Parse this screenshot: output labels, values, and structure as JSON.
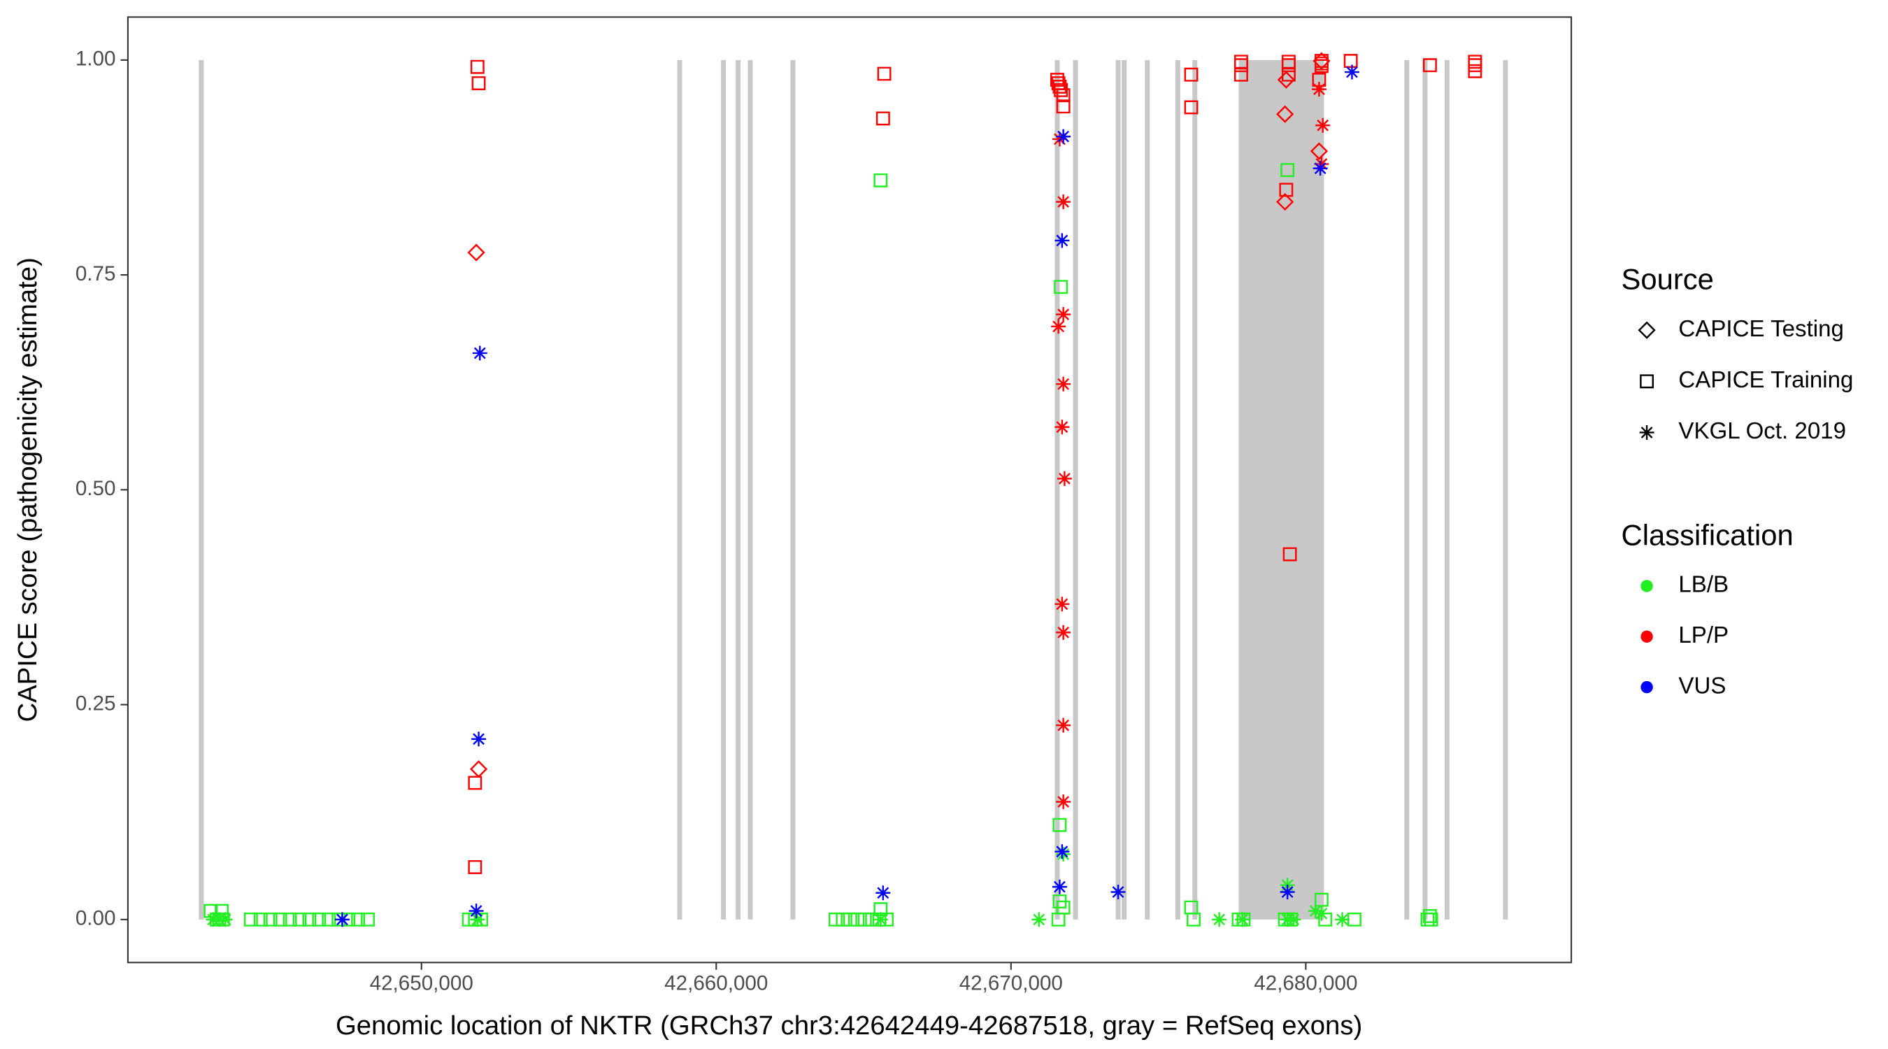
{
  "chart_data": {
    "type": "scatter",
    "x_label": "Genomic location of NKTR (GRCh37 chr3:42642449-42687518, gray = RefSeq exons)",
    "y_label": "CAPICE score (pathogenicity estimate)",
    "xlim": [
      42640041,
      42689008
    ],
    "ylim": [
      -0.05,
      1.05
    ],
    "xticks": [
      {
        "value": 42650000,
        "label": "42,650,000"
      },
      {
        "value": 42660000,
        "label": "42,660,000"
      },
      {
        "value": 42670000,
        "label": "42,670,000"
      },
      {
        "value": 42680000,
        "label": "42,680,000"
      }
    ],
    "yticks": [
      {
        "value": 0,
        "label": "0.00"
      },
      {
        "value": 0.25,
        "label": "0.25"
      },
      {
        "value": 0.5,
        "label": "0.50"
      },
      {
        "value": 0.75,
        "label": "0.75"
      },
      {
        "value": 1,
        "label": "1.00"
      }
    ],
    "grid": false,
    "exon_color": "#c8c8c8",
    "exon_band": [
      0,
      1
    ],
    "exons": [
      [
        42642449,
        42642600
      ],
      [
        42658677,
        42658827
      ],
      [
        42660164,
        42660314
      ],
      [
        42660660,
        42660810
      ],
      [
        42661073,
        42661223
      ],
      [
        42662519,
        42662669
      ],
      [
        42671486,
        42671636
      ],
      [
        42672105,
        42672255
      ],
      [
        42673552,
        42673702
      ],
      [
        42673758,
        42673908
      ],
      [
        42674543,
        42674693
      ],
      [
        42675576,
        42675726
      ],
      [
        42676155,
        42676305
      ],
      [
        42677725,
        42680617
      ],
      [
        42683344,
        42683494
      ],
      [
        42683964,
        42684114
      ],
      [
        42684708,
        42684858
      ],
      [
        42686691,
        42686841
      ]
    ],
    "source_legend": {
      "title": "Source",
      "items": [
        {
          "name": "CAPICE Testing",
          "shape": "diamond"
        },
        {
          "name": "CAPICE Training",
          "shape": "square"
        },
        {
          "name": "VKGL Oct. 2019",
          "shape": "asterisk"
        }
      ]
    },
    "classification_legend": {
      "title": "Classification",
      "items": [
        {
          "name": "LB/B",
          "color": "#22ee22"
        },
        {
          "name": "LP/P",
          "color": "#ff0000"
        },
        {
          "name": "VUS",
          "color": "#0000ff"
        }
      ]
    },
    "series": [
      {
        "source": 1,
        "classification": 0,
        "x": [
          42642851,
          42643223,
          42643057,
          42643264,
          42644214,
          42644545,
          42644875,
          42645206,
          42645537,
          42645867,
          42646198,
          42646528,
          42646859,
          42647189,
          42647520,
          42647850,
          42648181,
          42651611,
          42651817,
          42652024,
          42664048,
          42664296,
          42664544,
          42664792,
          42665040,
          42665288,
          42665535,
          42665783,
          42665577,
          42665577,
          42671609,
          42671775,
          42671651,
          42671651,
          42671692,
          42676113,
          42676196,
          42677725,
          42677890,
          42679295,
          42679502,
          42679378,
          42680535,
          42680659,
          42681650,
          42684129,
          42684253,
          42684212
        ],
        "y": [
          0.01,
          0.01,
          0,
          0,
          0,
          0,
          0,
          0,
          0,
          0,
          0,
          0,
          0,
          0,
          0,
          0,
          0,
          0,
          0,
          0,
          0,
          0,
          0,
          0,
          0,
          0,
          0,
          0,
          0.86,
          0.012,
          0,
          0.014,
          0.021,
          0.11,
          0.736,
          0.014,
          0,
          0,
          0,
          0,
          0,
          0.872,
          0.023,
          0,
          0,
          0,
          0,
          0.004
        ]
      },
      {
        "source": 2,
        "classification": 0,
        "x": [
          42642933,
          42643140,
          42643347,
          42651900,
          42665577,
          42670948,
          42671775,
          42677064,
          42677849,
          42679378,
          42679378,
          42679584,
          42680328,
          42680535,
          42681237
        ],
        "y": [
          0,
          0,
          0,
          0,
          0,
          0,
          0.076,
          0,
          0,
          0.04,
          0,
          0,
          0.01,
          0.007,
          0
        ]
      },
      {
        "source": 1,
        "classification": 1,
        "x": [
          42651900,
          42651941,
          42651817,
          42651817,
          42665701,
          42665659,
          42671568,
          42671609,
          42671651,
          42671692,
          42671775,
          42671775,
          42676113,
          42676113,
          42677807,
          42677807,
          42677807,
          42679419,
          42679419,
          42679419,
          42679336,
          42679460,
          42680535,
          42680535,
          42680535,
          42680452,
          42681526,
          42684212,
          42685741,
          42685741,
          42685741
        ],
        "y": [
          0.992,
          0.973,
          0.159,
          0.061,
          0.984,
          0.932,
          0.977,
          0.973,
          0.969,
          0.965,
          0.959,
          0.946,
          0.983,
          0.945,
          0.998,
          0.994,
          0.983,
          0.998,
          0.994,
          0.983,
          0.849,
          0.425,
          0.999,
          0.996,
          0.993,
          0.977,
          0.999,
          0.994,
          0.998,
          0.994,
          0.987
        ]
      },
      {
        "source": 0,
        "classification": 1,
        "x": [
          42651859,
          42651941,
          42679295,
          42679295,
          42679336,
          42680452,
          42680535
        ],
        "y": [
          0.776,
          0.175,
          0.937,
          0.835,
          0.977,
          0.894,
          0.999
        ]
      },
      {
        "source": 2,
        "classification": 1,
        "x": [
          42671609,
          42671775,
          42671775,
          42671775,
          42671733,
          42671816,
          42671733,
          42671775,
          42671775,
          42671775,
          42671651,
          42680452,
          42680576,
          42680535
        ],
        "y": [
          0.69,
          0.704,
          0.835,
          0.623,
          0.573,
          0.513,
          0.367,
          0.334,
          0.226,
          0.137,
          0.908,
          0.966,
          0.924,
          0.879
        ]
      },
      {
        "source": 2,
        "classification": 2,
        "x": [
          42647313,
          42651982,
          42651941,
          42651859,
          42665659,
          42671775,
          42671733,
          42671733,
          42671651,
          42673634,
          42679378,
          42680493,
          42681568
        ],
        "y": [
          0,
          0.659,
          0.21,
          0.01,
          0.031,
          0.911,
          0.79,
          0.079,
          0.038,
          0.032,
          0.032,
          0.874,
          0.986
        ]
      }
    ]
  }
}
